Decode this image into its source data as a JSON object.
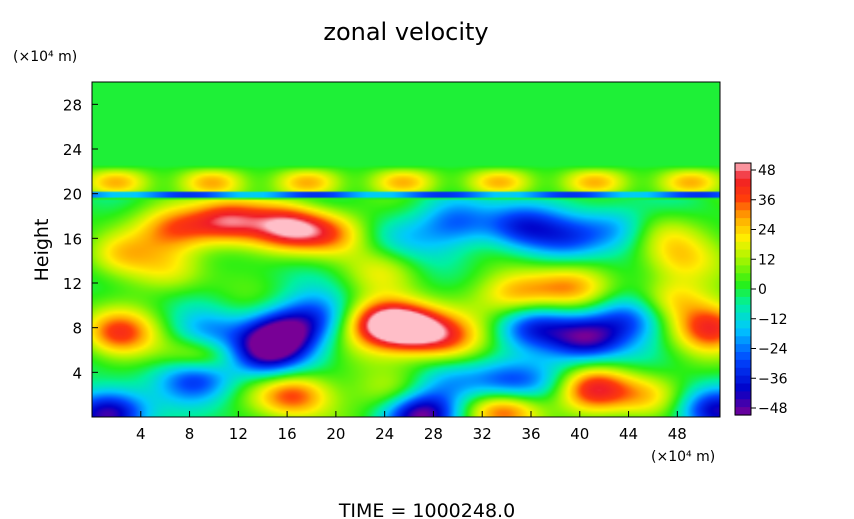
{
  "chart_data": {
    "type": "heatmap",
    "title": "zonal velocity",
    "xlabel": "",
    "ylabel": "Height",
    "x_unit_label": "(×10⁴ m)",
    "y_unit_label": "(×10⁴ m)",
    "xlim": [
      0,
      51.5
    ],
    "ylim": [
      0,
      30
    ],
    "x_ticks": [
      4,
      8,
      12,
      16,
      20,
      24,
      28,
      32,
      36,
      40,
      44,
      48
    ],
    "x_tick_labels": [
      "4",
      "8",
      "12",
      "16",
      "20",
      "24",
      "28",
      "32",
      "36",
      "40",
      "44",
      "48"
    ],
    "y_ticks": [
      4,
      8,
      12,
      16,
      20,
      24,
      28
    ],
    "y_tick_labels": [
      "4",
      "8",
      "12",
      "16",
      "20",
      "24",
      "28"
    ],
    "colorbar": {
      "min": -48,
      "max": 48,
      "tick_values": [
        48,
        36,
        24,
        12,
        0,
        -12,
        -24,
        -36,
        -48
      ],
      "tick_labels": [
        "48",
        "36",
        "24",
        "12",
        "0",
        "−12",
        "−24",
        "−36",
        "−48"
      ]
    },
    "features": [
      {
        "x": 2.0,
        "y": 7.5,
        "value": 34
      },
      {
        "x": 2.0,
        "y": 14.5,
        "value": 22
      },
      {
        "x": 7.0,
        "y": 17.0,
        "value": 30
      },
      {
        "x": 11.0,
        "y": 17.5,
        "value": 40
      },
      {
        "x": 16.0,
        "y": 17.0,
        "value": 38
      },
      {
        "x": 19.5,
        "y": 16.5,
        "value": 30
      },
      {
        "x": 6.5,
        "y": 13.0,
        "value": 14
      },
      {
        "x": 15.5,
        "y": 7.5,
        "value": -46
      },
      {
        "x": 14.0,
        "y": 5.5,
        "value": -36
      },
      {
        "x": 18.5,
        "y": 9.0,
        "value": -22
      },
      {
        "x": 9.0,
        "y": 5.5,
        "value": 42
      },
      {
        "x": 8.8,
        "y": 3.8,
        "value": -40
      },
      {
        "x": 9.5,
        "y": 7.0,
        "value": -28
      },
      {
        "x": 16.5,
        "y": 2.0,
        "value": 36
      },
      {
        "x": 26.0,
        "y": 8.0,
        "value": 50
      },
      {
        "x": 23.5,
        "y": 8.5,
        "value": 36
      },
      {
        "x": 29.0,
        "y": 7.0,
        "value": 30
      },
      {
        "x": 25.0,
        "y": 2.0,
        "value": 20
      },
      {
        "x": 34.0,
        "y": 1.0,
        "value": 48
      },
      {
        "x": 34.0,
        "y": 2.5,
        "value": -36
      },
      {
        "x": 29.5,
        "y": 3.0,
        "value": -20
      },
      {
        "x": 40.5,
        "y": 7.0,
        "value": -42
      },
      {
        "x": 36.0,
        "y": 8.0,
        "value": -30
      },
      {
        "x": 44.0,
        "y": 9.0,
        "value": -28
      },
      {
        "x": 47.5,
        "y": 10.5,
        "value": 24
      },
      {
        "x": 51.0,
        "y": 8.0,
        "value": 36
      },
      {
        "x": 41.0,
        "y": 2.5,
        "value": 38
      },
      {
        "x": 45.5,
        "y": 2.0,
        "value": 22
      },
      {
        "x": 38.0,
        "y": 3.5,
        "value": -12
      },
      {
        "x": 35.0,
        "y": 11.0,
        "value": 28
      },
      {
        "x": 39.0,
        "y": 11.5,
        "value": 24
      },
      {
        "x": 30.0,
        "y": 17.5,
        "value": -24
      },
      {
        "x": 35.0,
        "y": 17.0,
        "value": -30
      },
      {
        "x": 39.0,
        "y": 16.0,
        "value": -20
      },
      {
        "x": 43.0,
        "y": 17.0,
        "value": -22
      },
      {
        "x": 47.0,
        "y": 16.5,
        "value": 16
      },
      {
        "x": 48.0,
        "y": 14.0,
        "value": 18
      },
      {
        "x": 25.0,
        "y": 16.0,
        "value": -12
      },
      {
        "x": 24.0,
        "y": 13.0,
        "value": 12
      },
      {
        "x": 1.5,
        "y": 0.3,
        "value": -48
      },
      {
        "x": 27.0,
        "y": 0.3,
        "value": -48
      },
      {
        "x": 51.0,
        "y": 0.5,
        "value": -40
      }
    ],
    "jet_band": {
      "y_low": 19.5,
      "y_high": 22.5,
      "value": 26
    }
  },
  "footer": {
    "time_label": "TIME  =  1000248.0"
  },
  "colors": {
    "background": "#ffffff",
    "frame": "#000000"
  }
}
